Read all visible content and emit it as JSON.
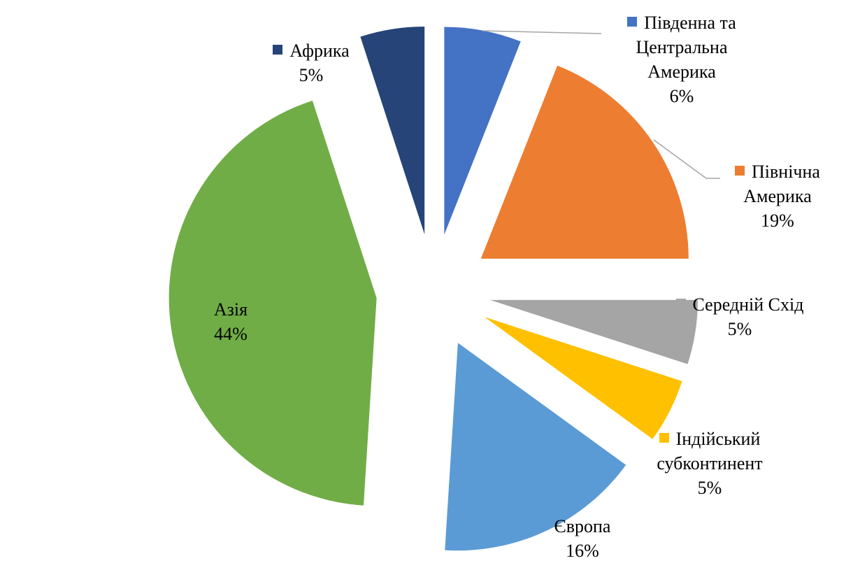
{
  "chart_data": {
    "type": "pie",
    "categories": [
      "Південна та Центральна Америка",
      "Північна Америка",
      "Середній Схід",
      "Індійський субконтинент",
      "Європа",
      "Азія",
      "Африка"
    ],
    "values": [
      6,
      19,
      5,
      5,
      16,
      44,
      5
    ],
    "value_labels": [
      "6%",
      "19%",
      "5%",
      "5%",
      "16%",
      "44%",
      "5%"
    ],
    "colors": [
      "#4472c4",
      "#ed7d31",
      "#a5a5a5",
      "#ffc000",
      "#5b9bd5",
      "#70ad47",
      "#264478"
    ]
  }
}
